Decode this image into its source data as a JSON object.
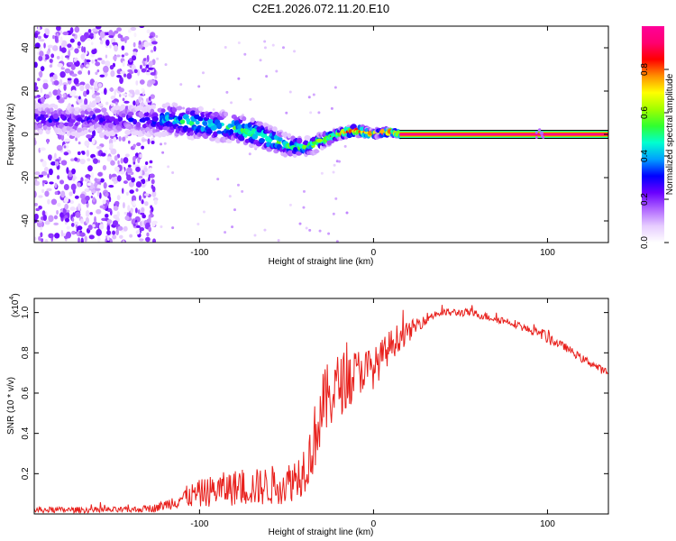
{
  "figure_title": "C2E1.2026.072.11.20.E10",
  "colors": {
    "snr_line": "#e8201c",
    "axis": "#000000",
    "colormap": [
      "#ffffff",
      "#e6ccff",
      "#b066ff",
      "#6a00ff",
      "#0000ff",
      "#00a0ff",
      "#00ffd0",
      "#30ff30",
      "#a0ff00",
      "#ffff00",
      "#ff9000",
      "#ff0000",
      "#ff0070",
      "#ff0099"
    ]
  },
  "chart_data": [
    {
      "type": "heatmap",
      "title": "C2E1.2026.072.11.20.E10",
      "xlabel": "Height of straight line (km)",
      "ylabel": "Frequency (Hz)",
      "xlim": [
        -195,
        135
      ],
      "ylim": [
        -50,
        50
      ],
      "x_ticks": [
        -100,
        0,
        100
      ],
      "x_tick_labels": [
        "-100",
        "0",
        "100"
      ],
      "y_ticks": [
        -40,
        -20,
        0,
        20,
        40
      ],
      "y_tick_labels": [
        "-40",
        "-20",
        "0",
        "20",
        "40"
      ],
      "colorbar": {
        "label": "Normalized spectral amplitude",
        "range": [
          0.0,
          1.0
        ],
        "ticks": [
          0.0,
          0.2,
          0.4,
          0.6,
          0.8
        ],
        "tick_labels": [
          "0.0",
          "0.2",
          "0.4",
          "0.6",
          "0.8"
        ]
      },
      "noise_region_x": [
        -195,
        -125
      ],
      "ridge": {
        "x": [
          -195,
          -180,
          -170,
          -160,
          -150,
          -140,
          -130,
          -120,
          -110,
          -100,
          -90,
          -80,
          -70,
          -60,
          -50,
          -40,
          -35,
          -30,
          -20,
          -10,
          -5,
          0,
          5,
          10,
          15,
          135
        ],
        "y": [
          7,
          7,
          6,
          8,
          6,
          7,
          6,
          7,
          6,
          5,
          4,
          3,
          1,
          -2,
          -5,
          -6,
          -5,
          -3,
          0,
          2,
          1,
          0,
          1,
          1,
          0,
          0
        ],
        "amplitude": [
          0.3,
          0.3,
          0.25,
          0.3,
          0.25,
          0.3,
          0.3,
          0.45,
          0.5,
          0.55,
          0.5,
          0.55,
          0.6,
          0.6,
          0.55,
          0.55,
          0.6,
          0.7,
          0.85,
          0.9,
          0.85,
          0.9,
          0.95,
          0.95,
          1.0,
          1.0
        ],
        "width_hz": [
          8,
          8,
          8,
          8,
          8,
          8,
          8,
          9,
          9,
          9,
          9,
          8,
          8,
          7,
          6,
          5,
          5,
          4,
          3,
          3,
          3,
          2,
          2,
          2,
          1.5,
          1.5
        ]
      }
    },
    {
      "type": "line",
      "xlabel": "Height of straight line (km)",
      "ylabel": "SNR (10 * v/v)",
      "y_scale_label": "(x10",
      "y_scale_exp": "4",
      "xlim": [
        -195,
        135
      ],
      "ylim": [
        0.0,
        1.07
      ],
      "x_ticks": [
        -100,
        0,
        100
      ],
      "x_tick_labels": [
        "-100",
        "0",
        "100"
      ],
      "y_ticks": [
        0.2,
        0.4,
        0.6,
        0.8,
        1.0
      ],
      "y_tick_labels": [
        "0.2",
        "0.4",
        "0.6",
        "0.8",
        "1.0"
      ],
      "series": [
        {
          "name": "SNR",
          "x": [
            -195,
            -180,
            -160,
            -140,
            -125,
            -118,
            -110,
            -100,
            -90,
            -80,
            -70,
            -60,
            -50,
            -42,
            -36,
            -32,
            -28,
            -24,
            -20,
            -15,
            -10,
            -5,
            0,
            5,
            10,
            15,
            20,
            25,
            30,
            35,
            40,
            45,
            50,
            55,
            60,
            65,
            70,
            75,
            80,
            85,
            90,
            95,
            100,
            105,
            110,
            115,
            120,
            125,
            130,
            135
          ],
          "y": [
            0.02,
            0.02,
            0.02,
            0.02,
            0.03,
            0.05,
            0.08,
            0.1,
            0.12,
            0.13,
            0.13,
            0.14,
            0.15,
            0.2,
            0.3,
            0.45,
            0.55,
            0.6,
            0.64,
            0.67,
            0.7,
            0.72,
            0.72,
            0.78,
            0.84,
            0.88,
            0.9,
            0.94,
            0.97,
            0.99,
            1.0,
            1.0,
            1.0,
            1.0,
            0.99,
            0.98,
            0.97,
            0.96,
            0.95,
            0.93,
            0.91,
            0.9,
            0.88,
            0.85,
            0.83,
            0.8,
            0.77,
            0.75,
            0.72,
            0.7
          ],
          "noise": [
            0.015,
            0.015,
            0.015,
            0.015,
            0.02,
            0.03,
            0.05,
            0.07,
            0.08,
            0.09,
            0.09,
            0.1,
            0.1,
            0.12,
            0.15,
            0.18,
            0.18,
            0.17,
            0.16,
            0.15,
            0.12,
            0.11,
            0.1,
            0.09,
            0.08,
            0.07,
            0.05,
            0.04,
            0.03,
            0.02,
            0.02,
            0.02,
            0.02,
            0.02,
            0.02,
            0.02,
            0.02,
            0.02,
            0.02,
            0.02,
            0.02,
            0.02,
            0.04,
            0.02,
            0.02,
            0.02,
            0.02,
            0.02,
            0.02,
            0.02
          ]
        }
      ]
    }
  ]
}
